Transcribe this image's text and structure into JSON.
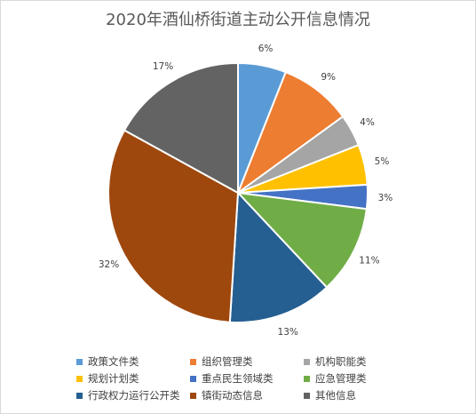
{
  "chart_data": {
    "type": "pie",
    "title": "2020年酒仙桥街道主动公开信息情况",
    "categories": [
      "政策文件类",
      "组织管理类",
      "机构职能类",
      "规划计划类",
      "重点民生领域类",
      "应急管理类",
      "行政权力运行公开类",
      "镇街动态信息",
      "其他信息"
    ],
    "values": [
      6,
      9,
      4,
      5,
      3,
      11,
      13,
      32,
      17
    ],
    "labels": [
      "6%",
      "9%",
      "4%",
      "5%",
      "3%",
      "11%",
      "13%",
      "32%",
      "17%"
    ],
    "colors": [
      "#5b9bd5",
      "#ed7d31",
      "#a5a5a5",
      "#ffc000",
      "#4472c4",
      "#70ad47",
      "#255e91",
      "#9e480e",
      "#636363"
    ],
    "legend_position": "bottom",
    "start_angle_deg": 0,
    "direction": "clockwise"
  }
}
